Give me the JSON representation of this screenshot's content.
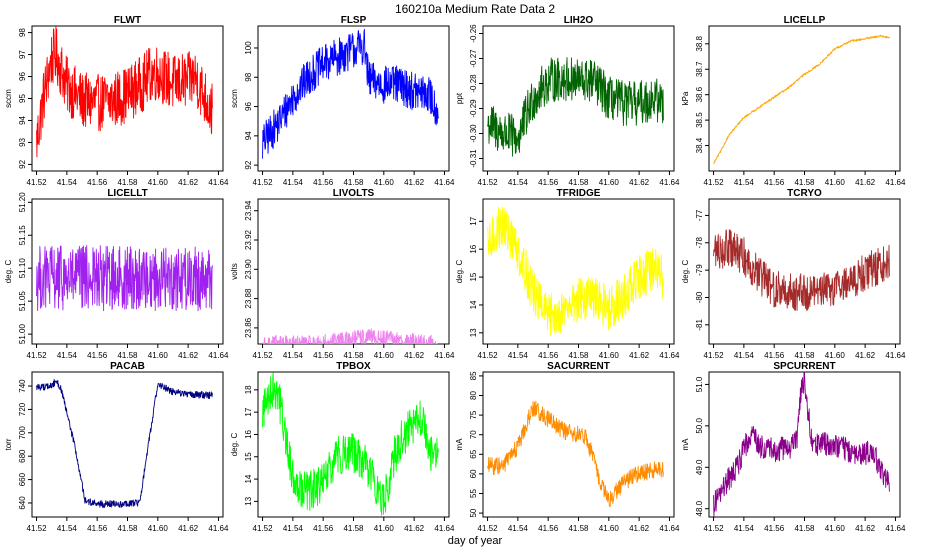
{
  "figure": {
    "title": "160210a   Medium Rate Data 2",
    "xlabel": "day of year"
  },
  "chart_data": [
    {
      "type": "line",
      "title": "FLWT",
      "ylabel": "sccm",
      "color": "#ff0000",
      "x": [
        41.52,
        41.525,
        41.53,
        41.533,
        41.54,
        41.55,
        41.56,
        41.57,
        41.58,
        41.59,
        41.595,
        41.6,
        41.61,
        41.62,
        41.625,
        41.63,
        41.636
      ],
      "values": [
        93.0,
        95.2,
        96.8,
        97.0,
        95.6,
        94.9,
        94.8,
        94.9,
        95.2,
        95.7,
        96.1,
        96.2,
        95.7,
        95.8,
        96.0,
        95.2,
        94.4
      ],
      "noise": 1.3,
      "xlim": [
        41.52,
        41.636
      ],
      "ylim": [
        91.7,
        98.3
      ],
      "xticks": [
        "41.52",
        "41.54",
        "41.56",
        "41.58",
        "41.60",
        "41.62",
        "41.64"
      ],
      "yticks": [
        "92",
        "93",
        "94",
        "95",
        "96",
        "97",
        "98"
      ]
    },
    {
      "type": "line",
      "title": "FLSP",
      "ylabel": "sccm",
      "color": "#0000ff",
      "x": [
        41.52,
        41.53,
        41.54,
        41.55,
        41.56,
        41.57,
        41.58,
        41.587,
        41.59,
        41.6,
        41.61,
        41.62,
        41.63,
        41.636
      ],
      "values": [
        93.5,
        94.8,
        96.6,
        98.0,
        98.9,
        99.4,
        99.9,
        100.2,
        97.8,
        97.5,
        97.5,
        97.0,
        96.8,
        95.6
      ],
      "noise": 1.3,
      "xlim": [
        41.52,
        41.636
      ],
      "ylim": [
        91.6,
        101.5
      ],
      "xticks": [
        "41.52",
        "41.54",
        "41.56",
        "41.58",
        "41.60",
        "41.62",
        "41.64"
      ],
      "yticks": [
        "92",
        "94",
        "96",
        "98",
        "100"
      ]
    },
    {
      "type": "line",
      "title": "LIH2O",
      "ylabel": "ppt",
      "color": "#006400",
      "x": [
        41.52,
        41.53,
        41.54,
        41.55,
        41.56,
        41.57,
        41.58,
        41.59,
        41.6,
        41.61,
        41.62,
        41.63,
        41.636
      ],
      "values": [
        -0.296,
        -0.3,
        -0.302,
        -0.286,
        -0.279,
        -0.278,
        -0.279,
        -0.279,
        -0.286,
        -0.288,
        -0.288,
        -0.286,
        -0.288
      ],
      "noise": 0.009,
      "xlim": [
        41.52,
        41.636
      ],
      "ylim": [
        -0.315,
        -0.257
      ],
      "xticks": [
        "41.52",
        "41.54",
        "41.56",
        "41.58",
        "41.60",
        "41.62",
        "41.64"
      ],
      "yticks": [
        "-0.31",
        "-0.30",
        "-0.29",
        "-0.28",
        "-0.27",
        "-0.26"
      ]
    },
    {
      "type": "line",
      "title": "LICELLP",
      "ylabel": "kPa",
      "color": "#ffa500",
      "x": [
        41.52,
        41.525,
        41.53,
        41.54,
        41.55,
        41.56,
        41.57,
        41.58,
        41.59,
        41.6,
        41.61,
        41.62,
        41.63,
        41.636
      ],
      "values": [
        38.33,
        38.38,
        38.44,
        38.51,
        38.55,
        38.59,
        38.63,
        38.68,
        38.72,
        38.78,
        38.81,
        38.82,
        38.83,
        38.825
      ],
      "noise": 0.004,
      "xlim": [
        41.52,
        41.636
      ],
      "ylim": [
        38.3,
        38.87
      ],
      "xticks": [
        "41.52",
        "41.54",
        "41.56",
        "41.58",
        "41.60",
        "41.62",
        "41.64"
      ],
      "yticks": [
        "38.4",
        "38.5",
        "38.6",
        "38.7",
        "38.8"
      ]
    },
    {
      "type": "line",
      "title": "LICELLT",
      "ylabel": "deg. C",
      "color": "#a020f0",
      "x": [
        41.52,
        41.636
      ],
      "values": [
        51.085,
        51.085
      ],
      "noise": 0.05,
      "xlim": [
        41.52,
        41.636
      ],
      "ylim": [
        50.985,
        51.205
      ],
      "xticks": [
        "41.52",
        "41.54",
        "41.56",
        "41.58",
        "41.60",
        "41.62",
        "41.64"
      ],
      "yticks": [
        "51.00",
        "51.05",
        "51.10",
        "51.15",
        "51.20"
      ]
    },
    {
      "type": "line",
      "title": "LIVOLTS",
      "ylabel": "volts",
      "color": "#ee82ee",
      "x": [
        41.52,
        41.555,
        41.565,
        41.59,
        41.61,
        41.625,
        41.636
      ],
      "values": [
        23.8488,
        23.8488,
        23.8505,
        23.8535,
        23.8515,
        23.8495,
        23.8488
      ],
      "noise": 0.006,
      "xlim": [
        41.52,
        41.636
      ],
      "ylim": [
        23.849,
        23.948
      ],
      "xticks": [
        "41.52",
        "41.54",
        "41.56",
        "41.58",
        "41.60",
        "41.62",
        "41.64"
      ],
      "yticks": [
        "23.86",
        "23.88",
        "23.90",
        "23.92",
        "23.94"
      ]
    },
    {
      "type": "line",
      "title": "TFRIDGE",
      "ylabel": "deg. C",
      "color": "#ffff00",
      "x": [
        41.52,
        41.525,
        41.53,
        41.54,
        41.55,
        41.56,
        41.57,
        41.58,
        41.59,
        41.6,
        41.61,
        41.62,
        41.63,
        41.636
      ],
      "values": [
        16.0,
        16.6,
        16.9,
        16.0,
        14.5,
        13.6,
        13.8,
        14.2,
        14.2,
        13.9,
        14.3,
        15.0,
        15.3,
        15.0
      ],
      "noise": 0.8,
      "xlim": [
        41.52,
        41.636
      ],
      "ylim": [
        12.6,
        17.8
      ],
      "xticks": [
        "41.52",
        "41.54",
        "41.56",
        "41.58",
        "41.60",
        "41.62",
        "41.64"
      ],
      "yticks": [
        "13",
        "14",
        "15",
        "16",
        "17"
      ]
    },
    {
      "type": "line",
      "title": "TCRYO",
      "ylabel": "deg. C",
      "color": "#a52a2a",
      "x": [
        41.52,
        41.53,
        41.54,
        41.55,
        41.56,
        41.57,
        41.58,
        41.59,
        41.6,
        41.61,
        41.62,
        41.63,
        41.636
      ],
      "values": [
        -78.3,
        -78.2,
        -78.5,
        -79.2,
        -79.7,
        -79.8,
        -79.8,
        -79.7,
        -79.6,
        -79.4,
        -79.1,
        -78.8,
        -78.6
      ],
      "noise": 0.7,
      "xlim": [
        41.52,
        41.636
      ],
      "ylim": [
        -81.7,
        -76.4
      ],
      "xticks": [
        "41.52",
        "41.54",
        "41.56",
        "41.58",
        "41.60",
        "41.62",
        "41.64"
      ],
      "yticks": [
        "-81",
        "-80",
        "-79",
        "-78",
        "-77"
      ]
    },
    {
      "type": "line",
      "title": "PACAB",
      "ylabel": "torr",
      "color": "#000080",
      "x": [
        41.52,
        41.53,
        41.533,
        41.536,
        41.545,
        41.552,
        41.56,
        41.57,
        41.58,
        41.585,
        41.588,
        41.595,
        41.6,
        41.61,
        41.62,
        41.636
      ],
      "values": [
        739,
        740,
        745,
        738,
        690,
        642,
        639,
        639,
        639,
        640,
        640,
        700,
        742,
        735,
        733,
        732
      ],
      "noise": 3,
      "xlim": [
        41.52,
        41.636
      ],
      "ylim": [
        628,
        752
      ],
      "xticks": [
        "41.52",
        "41.54",
        "41.56",
        "41.58",
        "41.60",
        "41.62",
        "41.64"
      ],
      "yticks": [
        "640",
        "660",
        "680",
        "700",
        "720",
        "740"
      ]
    },
    {
      "type": "line",
      "title": "TPBOX",
      "ylabel": "deg. C",
      "color": "#00ff00",
      "x": [
        41.52,
        41.525,
        41.53,
        41.535,
        41.54,
        41.55,
        41.56,
        41.57,
        41.58,
        41.59,
        41.6,
        41.605,
        41.61,
        41.62,
        41.625,
        41.63,
        41.636
      ],
      "values": [
        17.0,
        18.0,
        18.0,
        16.0,
        14.0,
        13.4,
        13.8,
        15.1,
        15.2,
        14.5,
        12.9,
        14.6,
        15.6,
        16.5,
        16.7,
        15.2,
        15.0
      ],
      "noise": 0.9,
      "xlim": [
        41.52,
        41.636
      ],
      "ylim": [
        12.3,
        18.8
      ],
      "xticks": [
        "41.52",
        "41.54",
        "41.56",
        "41.58",
        "41.60",
        "41.62",
        "41.64"
      ],
      "yticks": [
        "13",
        "14",
        "15",
        "16",
        "17",
        "18"
      ]
    },
    {
      "type": "line",
      "title": "SACURRENT",
      "ylabel": "mA",
      "color": "#ff8c00",
      "x": [
        41.52,
        41.53,
        41.54,
        41.545,
        41.55,
        41.56,
        41.57,
        41.58,
        41.585,
        41.59,
        41.595,
        41.6,
        41.61,
        41.62,
        41.63,
        41.636
      ],
      "values": [
        62,
        62,
        67,
        72,
        77,
        74,
        71,
        70,
        69,
        64,
        57,
        53,
        58,
        60,
        61,
        61
      ],
      "noise": 2.2,
      "xlim": [
        41.52,
        41.636
      ],
      "ylim": [
        49,
        86
      ],
      "xticks": [
        "41.52",
        "41.54",
        "41.56",
        "41.58",
        "41.60",
        "41.62",
        "41.64"
      ],
      "yticks": [
        "50",
        "55",
        "60",
        "65",
        "70",
        "75",
        "80",
        "85"
      ]
    },
    {
      "type": "line",
      "title": "SPCURRENT",
      "ylabel": "mA",
      "color": "#8b008b",
      "x": [
        41.52,
        41.525,
        41.53,
        41.535,
        41.54,
        41.545,
        41.55,
        41.56,
        41.57,
        41.575,
        41.578,
        41.58,
        41.585,
        41.59,
        41.6,
        41.61,
        41.62,
        41.625,
        41.63,
        41.636
      ],
      "values": [
        48.1,
        48.4,
        48.7,
        49.0,
        49.4,
        49.9,
        49.5,
        49.4,
        49.5,
        49.6,
        51.0,
        51.1,
        49.5,
        49.6,
        49.5,
        49.4,
        49.3,
        49.4,
        49.0,
        48.6
      ],
      "noise": 0.3,
      "xlim": [
        41.52,
        41.636
      ],
      "ylim": [
        47.8,
        51.3
      ],
      "xticks": [
        "41.52",
        "41.54",
        "41.56",
        "41.58",
        "41.60",
        "41.62",
        "41.64"
      ],
      "yticks": [
        "48.0",
        "49.0",
        "50.0",
        "51.0"
      ]
    }
  ]
}
